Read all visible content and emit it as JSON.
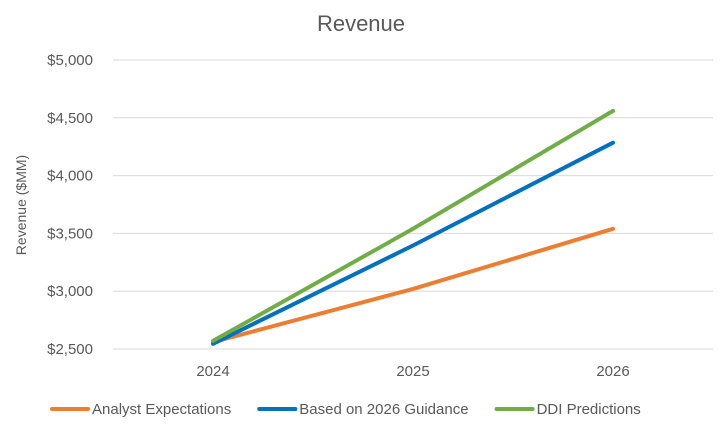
{
  "chart_data": {
    "type": "line",
    "title": "Revenue",
    "xlabel": "",
    "ylabel": "Revenue ($MM)",
    "categories": [
      "2024",
      "2025",
      "2026"
    ],
    "ylim": [
      2500,
      5000
    ],
    "yticks": [
      2500,
      3000,
      3500,
      4000,
      4500,
      5000
    ],
    "ytick_labels": [
      "$2,500",
      "$3,000",
      "$3,500",
      "$4,000",
      "$4,500",
      "$5,000"
    ],
    "grid": true,
    "legend_position": "bottom",
    "series": [
      {
        "name": "Analyst Expectations",
        "color": "#ed7d31",
        "values": [
          2560,
          3020,
          3540
        ]
      },
      {
        "name": "Based on 2026 Guidance",
        "color": "#0070c0",
        "values": [
          2545,
          3395,
          4285
        ]
      },
      {
        "name": "DDI Predictions",
        "color": "#70ad47",
        "values": [
          2570,
          3540,
          4560
        ]
      }
    ]
  }
}
